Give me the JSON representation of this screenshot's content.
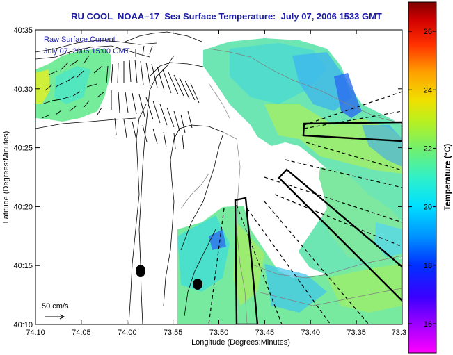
{
  "title": "RU COOL  NOAA–17  Sea Surface Temperature:  July 07, 2006 1533 GMT",
  "map": {
    "legend_line1": "Raw Surface Current",
    "legend_line2": "July 07, 2006 15:00 GMT",
    "scale_label": "50 cm/s",
    "x_axis_label": "Longitude (Degrees:Minutes)",
    "y_axis_label": "Latitude (Degrees:Minutes)",
    "x_ticks": [
      "74:10",
      "74:05",
      "74:00",
      "73:55",
      "73:50",
      "73:45",
      "73:40",
      "73:35",
      "73:3"
    ],
    "y_ticks": [
      "40:35",
      "40:30",
      "40:25",
      "40:20",
      "40:15",
      "40:10"
    ]
  },
  "colorbar": {
    "label": "Temperature (°C)",
    "ticks": [
      "26",
      "24",
      "22",
      "20",
      "18",
      "16"
    ],
    "range": [
      15,
      27
    ],
    "colors": [
      "#ff00ff",
      "#5a00ff",
      "#0000ff",
      "#0088ff",
      "#00e8ff",
      "#3cf0b0",
      "#7cf05a",
      "#d8f000",
      "#ffb000",
      "#ff5000",
      "#e00000",
      "#8c0000"
    ]
  }
}
